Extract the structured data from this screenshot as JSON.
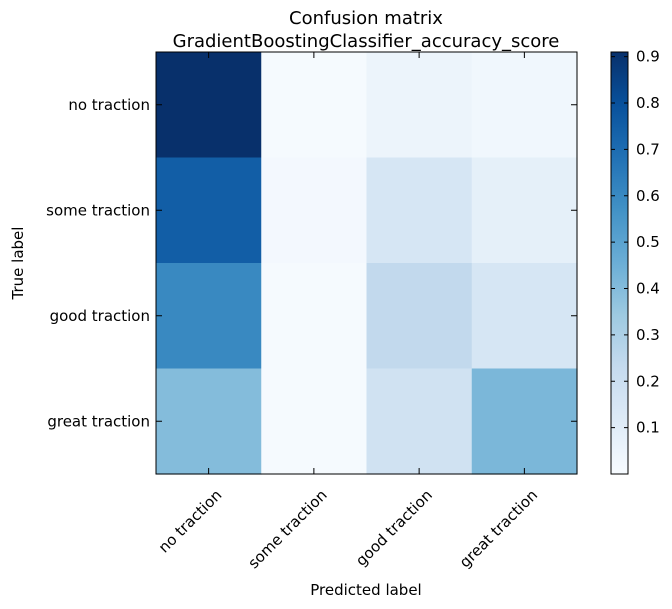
{
  "chart_data": {
    "type": "heatmap",
    "title": "Confusion matrix",
    "subtitle": "GradientBoostingClassifier_accuracy_score",
    "xlabel": "Predicted label",
    "ylabel": "True label",
    "x_categories": [
      "no traction",
      "some traction",
      "good traction",
      "great traction"
    ],
    "y_categories": [
      "no traction",
      "some traction",
      "good traction",
      "great traction"
    ],
    "values": [
      [
        0.91,
        0.01,
        0.05,
        0.03
      ],
      [
        0.75,
        0.02,
        0.15,
        0.08
      ],
      [
        0.6,
        0.01,
        0.24,
        0.15
      ],
      [
        0.4,
        0.01,
        0.18,
        0.42
      ]
    ],
    "colormap": "Blues",
    "colorbar": {
      "min": 0.0,
      "max": 0.91,
      "ticks": [
        0.1,
        0.2,
        0.3,
        0.4,
        0.5,
        0.6,
        0.7,
        0.8,
        0.9
      ],
      "tick_labels": [
        "0.1",
        "0.2",
        "0.3",
        "0.4",
        "0.5",
        "0.6",
        "0.7",
        "0.8",
        "0.9"
      ]
    },
    "grid": false
  }
}
